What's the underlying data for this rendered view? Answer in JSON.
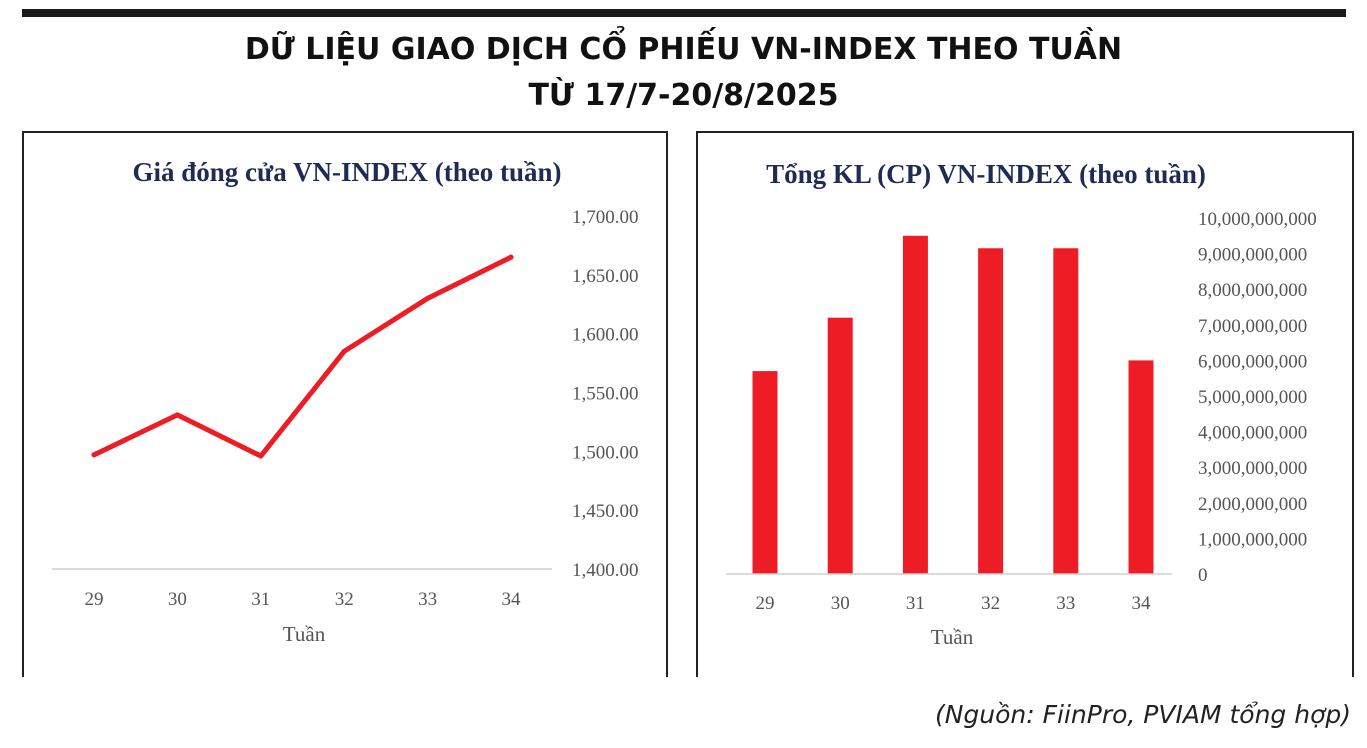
{
  "header": {
    "title_line1": "DỮ LIỆU GIAO DỊCH CỔ PHIẾU VN-INDEX THEO TUẦN",
    "title_line2": "TỪ 17/7-20/8/2025"
  },
  "source": "(Nguồn: FiinPro, PVIAM tổng hợp)",
  "colors": {
    "series": "#ee1c25",
    "axis_line": "#cfcfcf",
    "title": "#1f2a55"
  },
  "chart_data": [
    {
      "type": "line",
      "title": "Giá đóng cửa VN-INDEX (theo tuần)",
      "xlabel": "Tuần",
      "ylabel": "",
      "categories": [
        "29",
        "30",
        "31",
        "32",
        "33",
        "34"
      ],
      "series": [
        {
          "values": [
            1497,
            1531,
            1496,
            1585,
            1630,
            1665
          ]
        }
      ],
      "ylim": [
        1400,
        1700
      ],
      "yticks": [
        "1,700.00",
        "1,650.00",
        "1,600.00",
        "1,550.00",
        "1,500.00",
        "1,450.00",
        "1,400.00"
      ],
      "ytick_values": [
        1700,
        1650,
        1600,
        1550,
        1500,
        1450,
        1400
      ],
      "y_axis_side": "right",
      "grid": false,
      "legend": "none"
    },
    {
      "type": "bar",
      "title": "Tổng KL (CP) VN-INDEX (theo tuần)",
      "xlabel": "Tuần",
      "ylabel": "",
      "categories": [
        "29",
        "30",
        "31",
        "32",
        "33",
        "34"
      ],
      "series": [
        {
          "values": [
            5700000000,
            7200000000,
            9500000000,
            9150000000,
            9150000000,
            6000000000
          ]
        }
      ],
      "ylim": [
        0,
        10000000000
      ],
      "yticks": [
        "10,000,000,000",
        "9,000,000,000",
        "8,000,000,000",
        "7,000,000,000",
        "6,000,000,000",
        "5,000,000,000",
        "4,000,000,000",
        "3,000,000,000",
        "2,000,000,000",
        "1,000,000,000",
        "0"
      ],
      "ytick_values": [
        10000000000,
        9000000000,
        8000000000,
        7000000000,
        6000000000,
        5000000000,
        4000000000,
        3000000000,
        2000000000,
        1000000000,
        0
      ],
      "y_axis_side": "right",
      "grid": false,
      "legend": "none"
    }
  ]
}
